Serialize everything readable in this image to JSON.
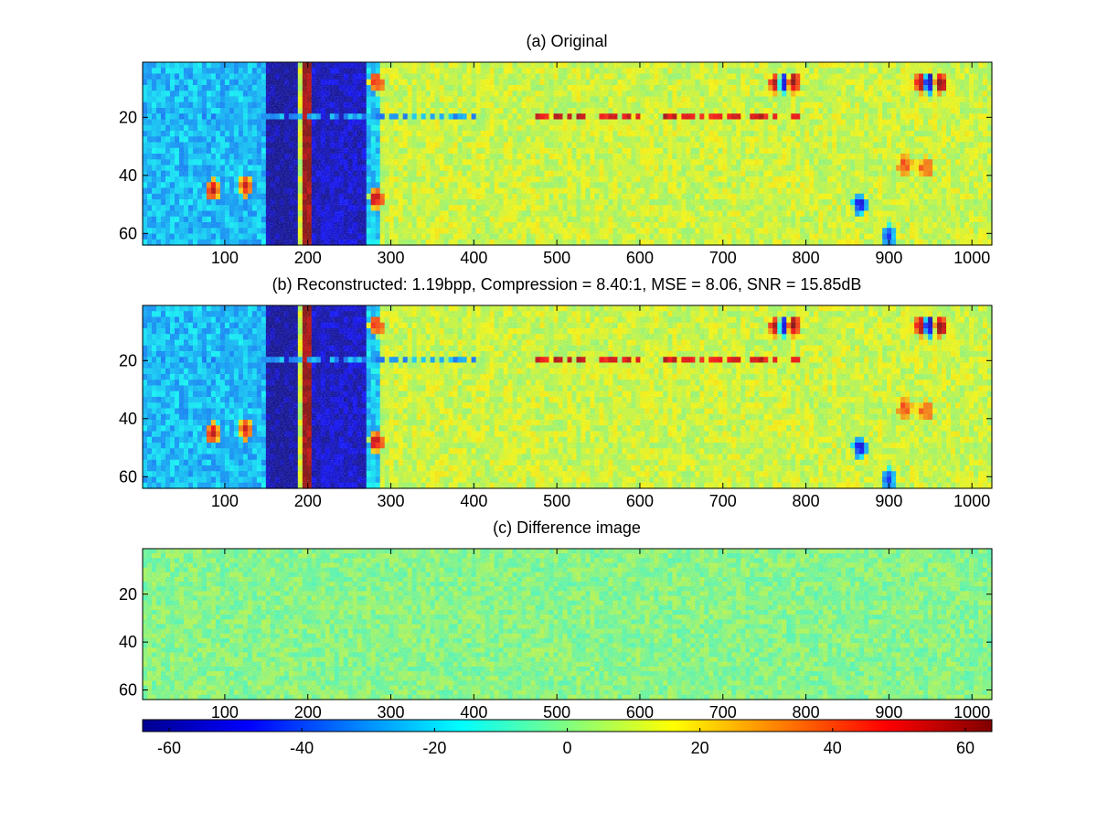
{
  "figure": {
    "colormap": "jet",
    "colormap_stops": [
      "#00008f",
      "#0000ff",
      "#00ffff",
      "#ffff00",
      "#ff0000",
      "#800000"
    ]
  },
  "chart_data": [
    {
      "type": "heatmap",
      "title": "(a) Original",
      "xlabel": "",
      "ylabel": "",
      "xlim": [
        1,
        1024
      ],
      "ylim": [
        64,
        1
      ],
      "y_reversed": true,
      "xticks": [
        100,
        200,
        300,
        400,
        500,
        600,
        700,
        800,
        900,
        1000
      ],
      "yticks": [
        20,
        40,
        60
      ],
      "clim": [
        -64,
        64
      ],
      "features": [
        {
          "kind": "field",
          "x": [
            1,
            150
          ],
          "value": -24
        },
        {
          "kind": "band",
          "x": [
            150,
            190
          ],
          "value": -62
        },
        {
          "kind": "band",
          "x": [
            193,
            203
          ],
          "value": 62
        },
        {
          "kind": "band",
          "x": [
            205,
            270
          ],
          "value": -55
        },
        {
          "kind": "field",
          "x": [
            270,
            285
          ],
          "value": -22
        },
        {
          "kind": "field",
          "x": [
            285,
            1024
          ],
          "value": 10
        },
        {
          "kind": "line",
          "x": [
            470,
            800
          ],
          "y": 20,
          "value": 52
        },
        {
          "kind": "line",
          "x": [
            1,
            400
          ],
          "y": 20,
          "value": -28
        },
        {
          "kind": "blob",
          "x": 85,
          "y": 45,
          "value": 58
        },
        {
          "kind": "blob",
          "x": 125,
          "y": 44,
          "value": 52
        },
        {
          "kind": "blob",
          "x": 282,
          "y": 8,
          "value": 50
        },
        {
          "kind": "blob",
          "x": 282,
          "y": 48,
          "value": 58
        },
        {
          "kind": "blob",
          "x": 765,
          "y": 8,
          "value": 58
        },
        {
          "kind": "blob",
          "x": 775,
          "y": 8,
          "value": -60
        },
        {
          "kind": "blob",
          "x": 785,
          "y": 8,
          "value": 58
        },
        {
          "kind": "blob",
          "x": 940,
          "y": 8,
          "value": 55
        },
        {
          "kind": "blob",
          "x": 950,
          "y": 8,
          "value": -62
        },
        {
          "kind": "blob",
          "x": 962,
          "y": 8,
          "value": 58
        },
        {
          "kind": "blob",
          "x": 920,
          "y": 37,
          "value": 40
        },
        {
          "kind": "blob",
          "x": 945,
          "y": 37,
          "value": 40
        },
        {
          "kind": "blob",
          "x": 865,
          "y": 50,
          "value": -50
        },
        {
          "kind": "blob",
          "x": 900,
          "y": 61,
          "value": -40
        }
      ]
    },
    {
      "type": "heatmap",
      "title": "(b) Reconstructed: 1.19bpp, Compression = 8.40:1, MSE = 8.06, SNR = 15.85dB",
      "xlabel": "",
      "ylabel": "",
      "xlim": [
        1,
        1024
      ],
      "ylim": [
        64,
        1
      ],
      "y_reversed": true,
      "xticks": [
        100,
        200,
        300,
        400,
        500,
        600,
        700,
        800,
        900,
        1000
      ],
      "yticks": [
        20,
        40,
        60
      ],
      "clim": [
        -64,
        64
      ],
      "bpp": 1.19,
      "compression_ratio": "8.40:1",
      "mse": 8.06,
      "snr_db": 15.85,
      "features": "same as (a)"
    },
    {
      "type": "heatmap",
      "title": "(c) Difference image",
      "xlabel": "",
      "ylabel": "",
      "xlim": [
        1,
        1024
      ],
      "ylim": [
        64,
        1
      ],
      "y_reversed": true,
      "xticks": [
        100,
        200,
        300,
        400,
        500,
        600,
        700,
        800,
        900,
        1000
      ],
      "yticks": [
        20,
        40,
        60
      ],
      "clim": [
        -64,
        64
      ],
      "value_range_approx": [
        -8,
        8
      ]
    },
    {
      "type": "colorbar",
      "orientation": "horizontal",
      "clim": [
        -64,
        64
      ],
      "ticks": [
        -60,
        -40,
        -20,
        0,
        20,
        40,
        60
      ]
    }
  ]
}
